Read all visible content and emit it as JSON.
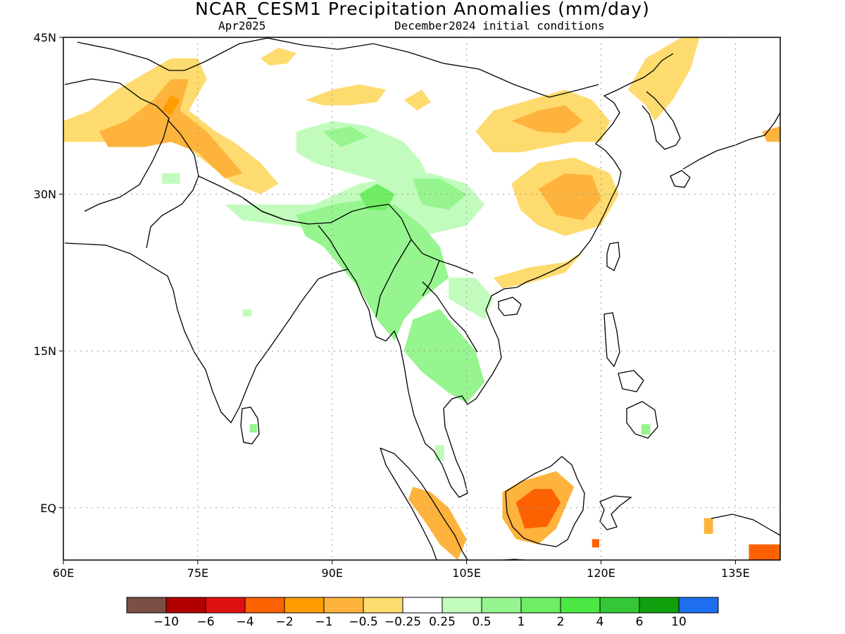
{
  "title": "NCAR_CESM1 Precipitation Anomalies (mm/day)",
  "subtitle_left": "Apr2025",
  "subtitle_right": "December2024 initial conditions",
  "map": {
    "lon_range": [
      60,
      140
    ],
    "lat_range": [
      -5,
      45
    ],
    "grid": true,
    "lon_ticks": [
      {
        "v": 60,
        "label": "60E"
      },
      {
        "v": 75,
        "label": "75E"
      },
      {
        "v": 90,
        "label": "90E"
      },
      {
        "v": 105,
        "label": "105E"
      },
      {
        "v": 120,
        "label": "120E"
      },
      {
        "v": 135,
        "label": "135E"
      }
    ],
    "lat_ticks": [
      {
        "v": 45,
        "label": "45N"
      },
      {
        "v": 30,
        "label": "30N"
      },
      {
        "v": 15,
        "label": "15N"
      },
      {
        "v": 0,
        "label": "EQ"
      }
    ],
    "anomaly_regions": [
      {
        "name": "north-pakistan-dry",
        "color": "#fedb6e",
        "pts": [
          [
            60,
            37
          ],
          [
            63,
            38
          ],
          [
            66,
            40
          ],
          [
            70,
            42
          ],
          [
            72,
            43
          ],
          [
            75,
            43
          ],
          [
            76,
            41
          ],
          [
            74,
            38
          ],
          [
            77,
            36
          ],
          [
            79,
            35
          ],
          [
            82,
            33
          ],
          [
            84,
            31
          ],
          [
            82,
            30
          ],
          [
            79,
            31
          ],
          [
            76,
            33
          ],
          [
            73,
            35
          ],
          [
            70,
            35.5
          ],
          [
            66,
            35
          ],
          [
            62,
            35
          ],
          [
            60,
            35
          ]
        ]
      },
      {
        "name": "north-pakistan-dry-2",
        "color": "#feb33d",
        "pts": [
          [
            64,
            36
          ],
          [
            67,
            37
          ],
          [
            70,
            39
          ],
          [
            72,
            41
          ],
          [
            74,
            41
          ],
          [
            73,
            38
          ],
          [
            76,
            36
          ],
          [
            78,
            34
          ],
          [
            80,
            32
          ],
          [
            78,
            31.5
          ],
          [
            75,
            34
          ],
          [
            72,
            35
          ],
          [
            69,
            34.5
          ],
          [
            65,
            34.5
          ]
        ]
      },
      {
        "name": "north-pakistan-dry-3",
        "color": "#fe9c00",
        "pts": [
          [
            71,
            38
          ],
          [
            72,
            39.5
          ],
          [
            73,
            39
          ],
          [
            72,
            37.5
          ]
        ]
      },
      {
        "name": "tibet-dry-1",
        "color": "#fedb6e",
        "pts": [
          [
            82,
            43
          ],
          [
            84,
            44
          ],
          [
            86,
            43.5
          ],
          [
            85,
            42.5
          ],
          [
            83,
            42.3
          ]
        ]
      },
      {
        "name": "tibet-dry-2",
        "color": "#fedb6e",
        "pts": [
          [
            87,
            39
          ],
          [
            90,
            40
          ],
          [
            93,
            40.5
          ],
          [
            96,
            40
          ],
          [
            95,
            38.8
          ],
          [
            92,
            38.5
          ],
          [
            89,
            38.5
          ]
        ]
      },
      {
        "name": "qinghai-dry",
        "color": "#fedb6e",
        "pts": [
          [
            98,
            39
          ],
          [
            100,
            40
          ],
          [
            101,
            38.8
          ],
          [
            99.5,
            38
          ]
        ]
      },
      {
        "name": "north-china-dry",
        "color": "#fedb6e",
        "pts": [
          [
            106,
            36
          ],
          [
            108,
            38
          ],
          [
            112,
            39
          ],
          [
            116,
            40
          ],
          [
            119,
            39
          ],
          [
            121,
            37
          ],
          [
            120,
            35
          ],
          [
            117,
            35
          ],
          [
            114,
            34.5
          ],
          [
            111,
            34
          ],
          [
            108,
            34
          ]
        ]
      },
      {
        "name": "north-china-dry-2",
        "color": "#feb33d",
        "pts": [
          [
            110,
            37
          ],
          [
            113,
            38
          ],
          [
            116,
            38.5
          ],
          [
            118,
            37
          ],
          [
            116,
            35.8
          ],
          [
            113,
            36
          ]
        ]
      },
      {
        "name": "east-china-dry",
        "color": "#fedb6e",
        "pts": [
          [
            110,
            31
          ],
          [
            113,
            33
          ],
          [
            117,
            33.5
          ],
          [
            121,
            32
          ],
          [
            122,
            30
          ],
          [
            120,
            27
          ],
          [
            116,
            26
          ],
          [
            113,
            27
          ],
          [
            111,
            28.5
          ]
        ]
      },
      {
        "name": "east-china-dry-2",
        "color": "#feb33d",
        "pts": [
          [
            113,
            30.5
          ],
          [
            116,
            32
          ],
          [
            119,
            31.8
          ],
          [
            120,
            29.5
          ],
          [
            118,
            27.5
          ],
          [
            115,
            28
          ]
        ]
      },
      {
        "name": "south-china-coast-dry",
        "color": "#fedb6e",
        "pts": [
          [
            108,
            22
          ],
          [
            112,
            23
          ],
          [
            116,
            23.5
          ],
          [
            118,
            24.5
          ],
          [
            116,
            22.5
          ],
          [
            112,
            21.5
          ],
          [
            109,
            21
          ]
        ]
      },
      {
        "name": "korea-dry",
        "color": "#fedb6e",
        "pts": [
          [
            123,
            40
          ],
          [
            125,
            43
          ],
          [
            129,
            45
          ],
          [
            131,
            45
          ],
          [
            130,
            42
          ],
          [
            128,
            39
          ],
          [
            126,
            37
          ],
          [
            125,
            38.5
          ]
        ]
      },
      {
        "name": "japan-dry",
        "color": "#feb33d",
        "pts": [
          [
            138,
            36
          ],
          [
            140,
            36.5
          ],
          [
            140,
            35
          ],
          [
            138.5,
            35
          ]
        ]
      },
      {
        "name": "myanmar-hotspot-outer",
        "color": "#fedb6e",
        "pts": [
          [
            96,
            29
          ],
          [
            97.5,
            30
          ],
          [
            99.5,
            30
          ],
          [
            100.5,
            29
          ],
          [
            99.5,
            27.8
          ],
          [
            97.5,
            27.7
          ]
        ]
      },
      {
        "name": "myanmar-hotspot",
        "color": "#fe9c00",
        "pts": [
          [
            96.8,
            28.8
          ],
          [
            98,
            29.6
          ],
          [
            99.4,
            29.3
          ],
          [
            99.7,
            28.3
          ],
          [
            98.4,
            27.9
          ],
          [
            97.2,
            28.1
          ]
        ]
      },
      {
        "name": "myanmar-hotspot-core",
        "color": "#fd6202",
        "pts": [
          [
            97.5,
            28.7
          ],
          [
            98.4,
            29.1
          ],
          [
            99,
            28.5
          ],
          [
            98.2,
            28.1
          ]
        ]
      },
      {
        "name": "sumatra-dry",
        "color": "#feb33d",
        "pts": [
          [
            99,
            2
          ],
          [
            101,
            1.5
          ],
          [
            103,
            0
          ],
          [
            105,
            -3
          ],
          [
            104,
            -5
          ],
          [
            102,
            -3.5
          ],
          [
            100.5,
            -1.5
          ],
          [
            98.5,
            0.8
          ]
        ]
      },
      {
        "name": "borneo-dry",
        "color": "#feb33d",
        "pts": [
          [
            109,
            1.5
          ],
          [
            111,
            2.5
          ],
          [
            113,
            3
          ],
          [
            115,
            3.5
          ],
          [
            117,
            2
          ],
          [
            116,
            0
          ],
          [
            115,
            -2
          ],
          [
            113,
            -3.5
          ],
          [
            110.5,
            -3
          ],
          [
            109,
            -1
          ]
        ]
      },
      {
        "name": "borneo-dry-core",
        "color": "#fd6202",
        "pts": [
          [
            110.5,
            0.5
          ],
          [
            112.5,
            1.8
          ],
          [
            114.5,
            1.8
          ],
          [
            115.5,
            0.5
          ],
          [
            114,
            -1.8
          ],
          [
            111.5,
            -2
          ]
        ]
      },
      {
        "name": "sulawesi-dry",
        "color": "#fd6202",
        "pts": [
          [
            119,
            -3
          ],
          [
            119.8,
            -3
          ],
          [
            119.8,
            -3.8
          ],
          [
            119,
            -3.8
          ]
        ]
      },
      {
        "name": "new-guinea-dry",
        "color": "#fd6202",
        "pts": [
          [
            136.5,
            -3.5
          ],
          [
            140,
            -3.5
          ],
          [
            140,
            -5
          ],
          [
            136.5,
            -5
          ]
        ]
      },
      {
        "name": "moluccas-dry",
        "color": "#feb33d",
        "pts": [
          [
            131.5,
            -1
          ],
          [
            132.5,
            -1
          ],
          [
            132.5,
            -2.5
          ],
          [
            131.5,
            -2.5
          ]
        ]
      },
      {
        "name": "tibet-wet",
        "color": "#c1fcbd",
        "pts": [
          [
            86,
            36
          ],
          [
            90,
            37
          ],
          [
            94,
            36.5
          ],
          [
            98,
            35
          ],
          [
            100,
            33
          ],
          [
            101,
            31
          ],
          [
            99,
            30
          ],
          [
            96,
            31
          ],
          [
            92,
            32
          ],
          [
            88,
            33
          ],
          [
            86,
            34
          ]
        ]
      },
      {
        "name": "tibet-wet-2",
        "color": "#96f58e",
        "pts": [
          [
            89,
            36
          ],
          [
            92,
            36.5
          ],
          [
            94,
            35.5
          ],
          [
            91,
            34.5
          ]
        ]
      },
      {
        "name": "south-tibet-wet",
        "color": "#c1fcbd",
        "pts": [
          [
            78,
            29
          ],
          [
            83,
            29
          ],
          [
            88,
            29
          ],
          [
            93,
            31
          ],
          [
            97,
            31.5
          ],
          [
            101,
            32
          ],
          [
            105,
            31
          ],
          [
            107,
            29
          ],
          [
            105,
            27
          ],
          [
            100,
            26
          ],
          [
            95,
            26
          ],
          [
            90,
            26.5
          ],
          [
            85,
            27
          ],
          [
            80,
            27.5
          ]
        ]
      },
      {
        "name": "sichuan-wet",
        "color": "#96f58e",
        "pts": [
          [
            99,
            31.5
          ],
          [
            102,
            31.5
          ],
          [
            105,
            30
          ],
          [
            103,
            28.5
          ],
          [
            100,
            29
          ]
        ]
      },
      {
        "name": "mainland-sea-wet",
        "color": "#96f58e",
        "pts": [
          [
            86,
            28
          ],
          [
            90,
            29
          ],
          [
            94,
            29.5
          ],
          [
            97,
            29
          ],
          [
            100,
            27
          ],
          [
            102,
            25
          ],
          [
            103,
            22
          ],
          [
            100,
            20
          ],
          [
            98,
            18
          ],
          [
            97,
            16
          ],
          [
            95,
            18
          ],
          [
            93,
            21
          ],
          [
            91,
            23
          ],
          [
            89,
            25
          ],
          [
            87,
            26
          ]
        ]
      },
      {
        "name": "myanmar-wet-core",
        "color": "#6fee63",
        "pts": [
          [
            93,
            30
          ],
          [
            95,
            31
          ],
          [
            97,
            30
          ],
          [
            96,
            28.5
          ],
          [
            94,
            28.5
          ]
        ]
      },
      {
        "name": "thailand-wet",
        "color": "#96f58e",
        "pts": [
          [
            99,
            18
          ],
          [
            102,
            19
          ],
          [
            104,
            17
          ],
          [
            106,
            15
          ],
          [
            107,
            12
          ],
          [
            105,
            10
          ],
          [
            103,
            11
          ],
          [
            100,
            13
          ],
          [
            98,
            15
          ]
        ]
      },
      {
        "name": "indochina-wet",
        "color": "#c1fcbd",
        "pts": [
          [
            103,
            22
          ],
          [
            106,
            22
          ],
          [
            108,
            20
          ],
          [
            107,
            18
          ],
          [
            105,
            19
          ],
          [
            103,
            20
          ]
        ]
      },
      {
        "name": "india-wet-1",
        "color": "#c1fcbd",
        "pts": [
          [
            71,
            32
          ],
          [
            73,
            32
          ],
          [
            73,
            31
          ],
          [
            71,
            31
          ]
        ]
      },
      {
        "name": "india-wet-2",
        "color": "#c1fcbd",
        "pts": [
          [
            80,
            19
          ],
          [
            81,
            19
          ],
          [
            81,
            18.3
          ],
          [
            80,
            18.3
          ]
        ]
      },
      {
        "name": "sri-lanka-wet",
        "color": "#96f58e",
        "pts": [
          [
            80.8,
            8
          ],
          [
            81.6,
            8
          ],
          [
            81.6,
            7.2
          ],
          [
            80.8,
            7.2
          ]
        ]
      },
      {
        "name": "philippines-wet",
        "color": "#96f58e",
        "pts": [
          [
            124.5,
            8
          ],
          [
            125.5,
            8
          ],
          [
            125.5,
            7
          ],
          [
            124.5,
            7
          ]
        ]
      },
      {
        "name": "malaya-wet",
        "color": "#c1fcbd",
        "pts": [
          [
            101.5,
            6
          ],
          [
            102.5,
            6
          ],
          [
            102.5,
            4.5
          ],
          [
            101.5,
            4.5
          ]
        ]
      }
    ]
  },
  "colorbar": {
    "colors": [
      "#7a5046",
      "#b20000",
      "#df1010",
      "#fd6202",
      "#fe9c00",
      "#feb33d",
      "#fedb6e",
      "#ffffff",
      "#c1fcbd",
      "#96f58e",
      "#6fee63",
      "#4ce844",
      "#35c836",
      "#10a00e",
      "#1e6ff0"
    ],
    "labels": [
      "−10",
      "−6",
      "−4",
      "−2",
      "−1",
      "−0.5",
      "−0.25",
      "0.25",
      "0.5",
      "1",
      "2",
      "4",
      "6",
      "10"
    ]
  }
}
